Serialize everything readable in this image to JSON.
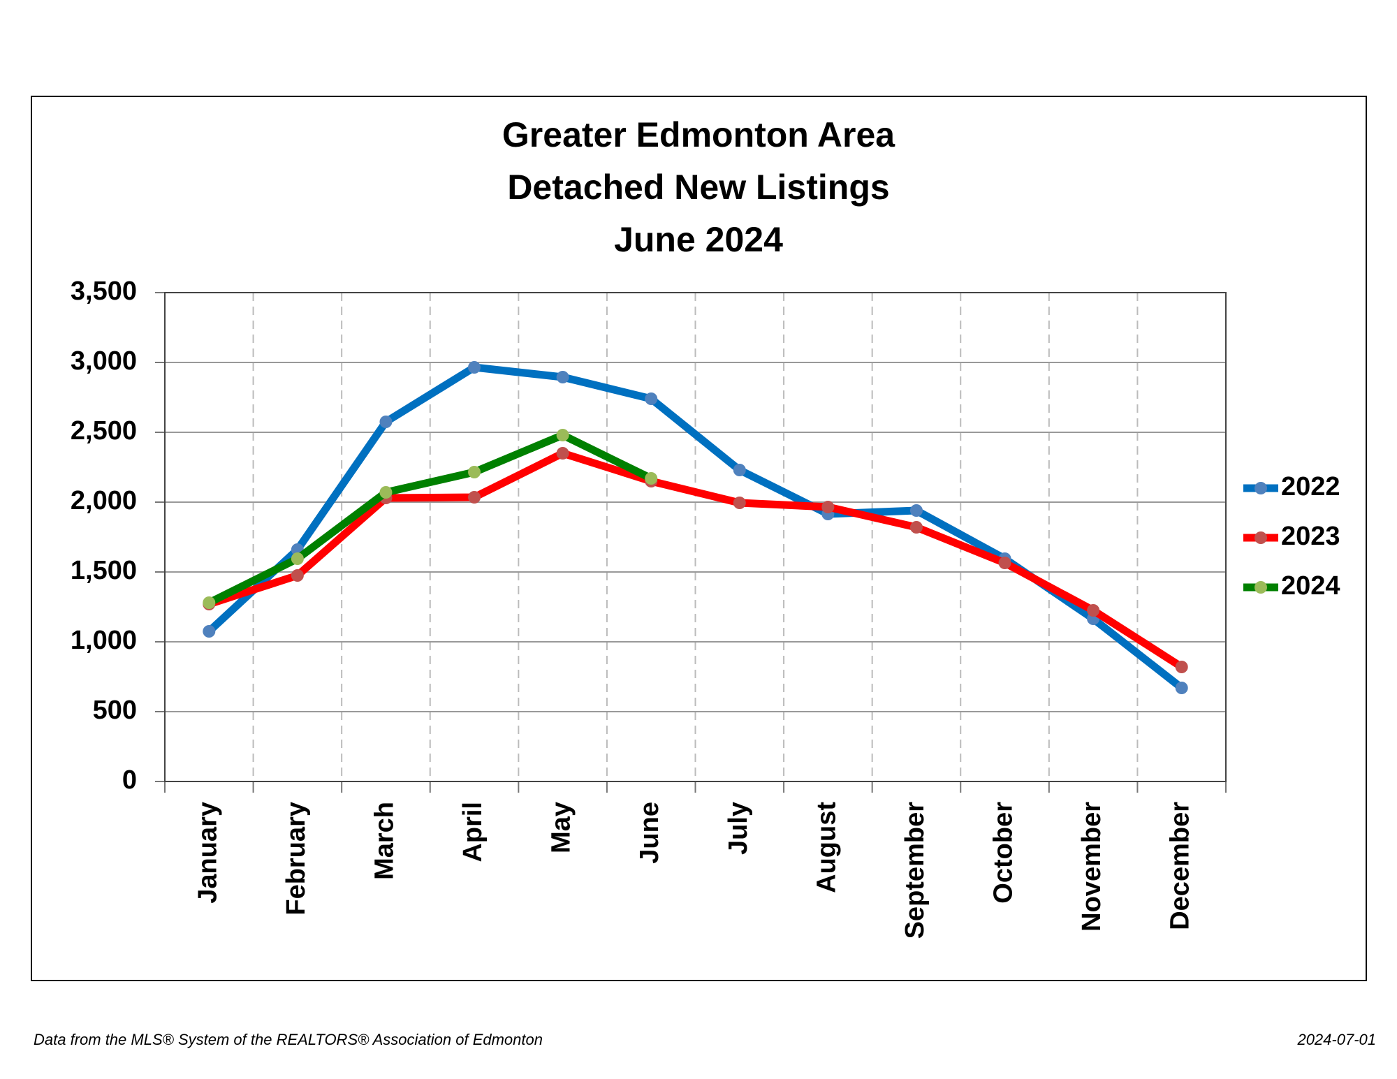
{
  "chart_data": {
    "type": "line",
    "title": [
      "Greater Edmonton Area",
      "Detached New Listings",
      "June 2024"
    ],
    "categories": [
      "January",
      "February",
      "March",
      "April",
      "May",
      "June",
      "July",
      "August",
      "September",
      "October",
      "November",
      "December"
    ],
    "series": [
      {
        "name": "2022",
        "color": "#0070c0",
        "marker_color": "#4f81bd",
        "values": [
          1075,
          1660,
          2575,
          2965,
          2895,
          2740,
          2230,
          1915,
          1940,
          1595,
          1165,
          670
        ]
      },
      {
        "name": "2023",
        "color": "#ff0000",
        "marker_color": "#c0504d",
        "values": [
          1270,
          1475,
          2030,
          2035,
          2350,
          2150,
          1995,
          1965,
          1820,
          1565,
          1225,
          820
        ]
      },
      {
        "name": "2024",
        "color": "#008000",
        "marker_color": "#9bbb59",
        "values": [
          1280,
          1595,
          2070,
          2215,
          2480,
          2170,
          null,
          null,
          null,
          null,
          null,
          null
        ]
      }
    ],
    "ylim": [
      0,
      3500
    ],
    "yticks": [
      0,
      500,
      {
        "value": 1000,
        "label": "1,000"
      },
      {
        "value": 1500,
        "label": "1,500"
      },
      {
        "value": 2000,
        "label": "2,000"
      },
      {
        "value": 2500,
        "label": "2,500"
      },
      {
        "value": 3000,
        "label": "3,000"
      },
      {
        "value": 3500,
        "label": "3,500"
      }
    ],
    "grid": true,
    "legend": "right"
  },
  "footer": {
    "source": "Data from the MLS® System of the REALTORS® Association of Edmonton",
    "date": "2024-07-01"
  }
}
